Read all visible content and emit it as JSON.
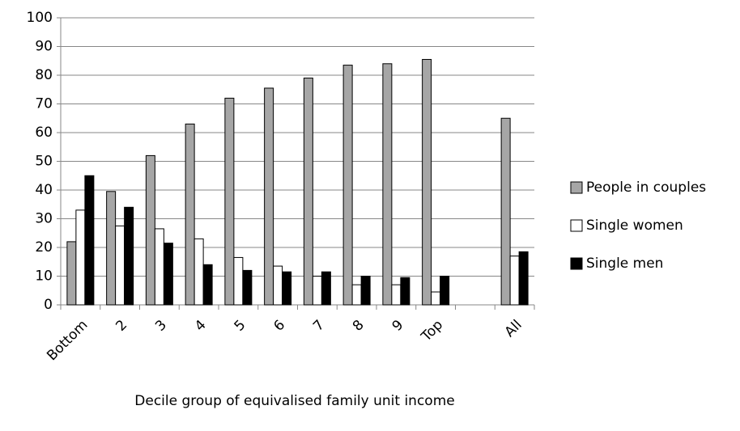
{
  "chart_data": {
    "type": "bar",
    "x_label": "Decile group of equivalised family unit income",
    "categories": [
      "Bottom",
      "2",
      "3",
      "4",
      "5",
      "6",
      "7",
      "8",
      "9",
      "Top",
      null,
      "All"
    ],
    "series": [
      {
        "name": "People in couples",
        "color": "#a6a6a6",
        "values": [
          22,
          39.5,
          52,
          63,
          72,
          75.5,
          79,
          83.5,
          84,
          85.5,
          null,
          65
        ]
      },
      {
        "name": "Single women",
        "color": "#ffffff",
        "values": [
          33,
          27.5,
          26.5,
          23,
          16.5,
          13.5,
          10,
          7,
          7,
          4.5,
          null,
          17
        ]
      },
      {
        "name": "Single men",
        "color": "#000000",
        "values": [
          45,
          34,
          21.5,
          14,
          12,
          11.5,
          11.5,
          10,
          9.5,
          10,
          null,
          18.5
        ]
      }
    ],
    "ylim": [
      0,
      100
    ],
    "yticks": [
      0,
      10,
      20,
      30,
      40,
      50,
      60,
      70,
      80,
      90,
      100
    ],
    "grid": true,
    "legend": "right"
  }
}
